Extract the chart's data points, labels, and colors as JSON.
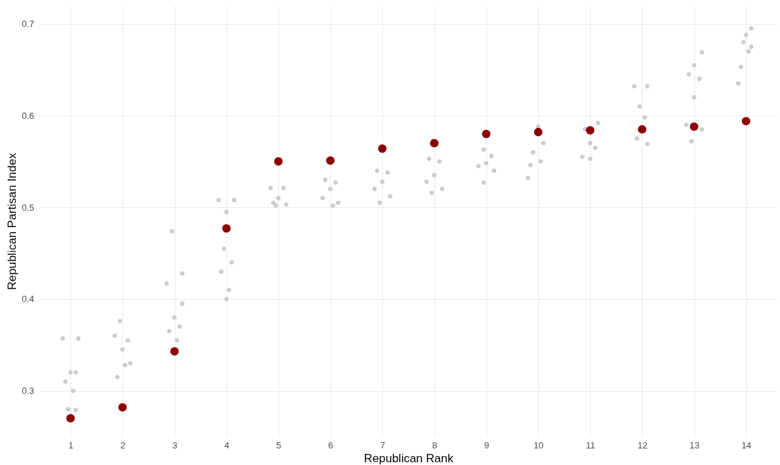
{
  "chart_data": {
    "type": "scatter",
    "xlabel": "Republican Rank",
    "ylabel": "Republican Partisan Index",
    "xlim": [
      0.4,
      14.6
    ],
    "ylim": [
      0.25,
      0.72
    ],
    "xticks": [
      1,
      2,
      3,
      4,
      5,
      6,
      7,
      8,
      9,
      10,
      11,
      12,
      13,
      14
    ],
    "yticks": [
      0.3,
      0.4,
      0.5,
      0.6,
      0.7
    ],
    "grid": true,
    "series": [
      {
        "color": "#cccccc",
        "x": [
          0.85,
          1.15,
          1.0,
          0.9,
          1.1,
          0.95,
          1.1,
          1.05,
          1.95,
          1.85,
          2.1,
          2.0,
          2.15,
          1.9,
          2.05,
          2.95,
          2.85,
          3.15,
          3.0,
          3.1,
          2.9,
          3.05,
          3.15,
          3.85,
          4.15,
          4.0,
          3.95,
          4.1,
          3.9,
          4.05,
          4.0,
          4.85,
          5.1,
          5.0,
          4.9,
          5.15,
          4.95,
          5.9,
          6.1,
          6.0,
          5.85,
          6.15,
          6.05,
          6.9,
          7.1,
          7.0,
          6.85,
          7.15,
          6.95,
          7.9,
          8.1,
          8.0,
          7.85,
          8.15,
          7.95,
          8.95,
          9.1,
          9.0,
          8.85,
          9.15,
          8.95,
          10.0,
          10.1,
          9.9,
          10.05,
          9.85,
          9.8,
          11.15,
          10.9,
          11.0,
          11.1,
          10.85,
          11.0,
          11.85,
          12.1,
          11.95,
          12.05,
          11.9,
          12.1,
          13.15,
          13.0,
          12.9,
          13.1,
          13.0,
          12.85,
          13.15,
          12.95,
          13.85,
          13.9,
          14.1,
          14.0,
          13.95,
          14.1,
          14.05
        ],
        "values": [
          0.357,
          0.357,
          0.32,
          0.31,
          0.32,
          0.28,
          0.279,
          0.3,
          0.376,
          0.36,
          0.355,
          0.345,
          0.33,
          0.315,
          0.328,
          0.474,
          0.417,
          0.428,
          0.38,
          0.37,
          0.365,
          0.355,
          0.395,
          0.508,
          0.508,
          0.495,
          0.455,
          0.44,
          0.43,
          0.41,
          0.4,
          0.521,
          0.521,
          0.51,
          0.505,
          0.503,
          0.502,
          0.53,
          0.527,
          0.52,
          0.51,
          0.505,
          0.502,
          0.54,
          0.538,
          0.528,
          0.52,
          0.512,
          0.505,
          0.553,
          0.55,
          0.535,
          0.528,
          0.52,
          0.516,
          0.563,
          0.556,
          0.548,
          0.545,
          0.54,
          0.527,
          0.588,
          0.57,
          0.56,
          0.55,
          0.546,
          0.532,
          0.592,
          0.585,
          0.57,
          0.565,
          0.555,
          0.553,
          0.632,
          0.632,
          0.61,
          0.598,
          0.575,
          0.569,
          0.669,
          0.655,
          0.645,
          0.64,
          0.62,
          0.59,
          0.585,
          0.572,
          0.635,
          0.653,
          0.695,
          0.688,
          0.68,
          0.675,
          0.67
        ]
      },
      {
        "color": "#8b0000",
        "x": [
          1,
          2,
          3,
          4,
          5,
          6,
          7,
          8,
          9,
          10,
          11,
          12,
          13,
          14
        ],
        "values": [
          0.27,
          0.282,
          0.343,
          0.477,
          0.55,
          0.551,
          0.564,
          0.57,
          0.58,
          0.582,
          0.584,
          0.585,
          0.588,
          0.594
        ]
      }
    ]
  }
}
